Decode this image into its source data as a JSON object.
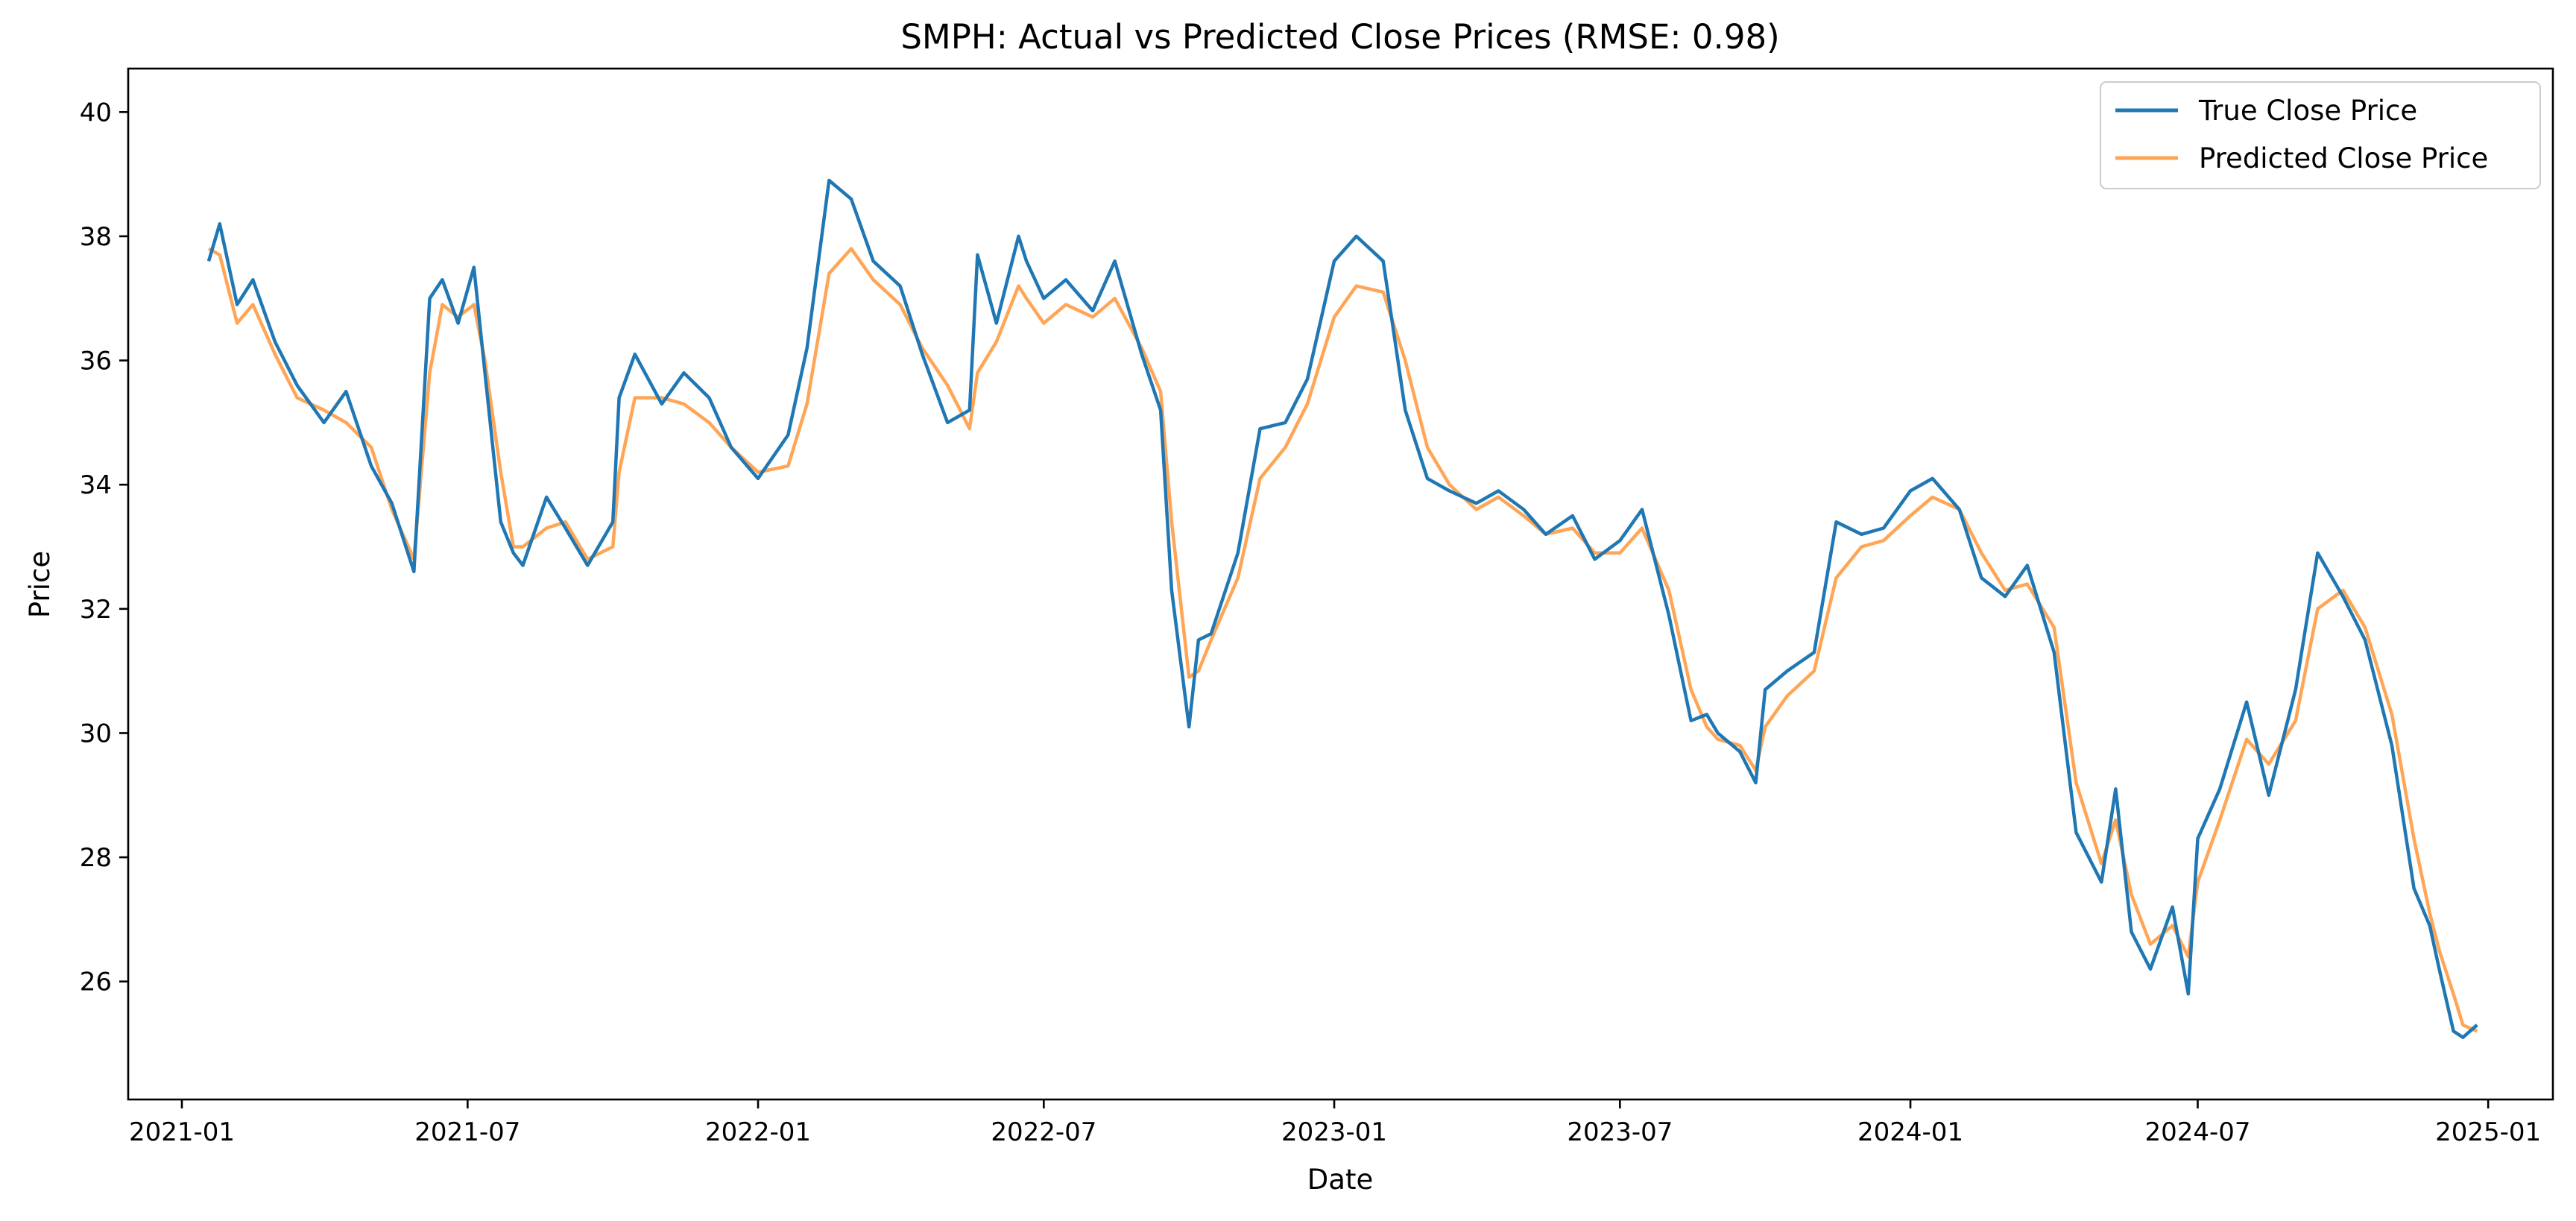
{
  "chart_data": {
    "type": "line",
    "title": "SMPH: Actual vs Predicted Close Prices (RMSE: 0.98)",
    "xlabel": "Date",
    "ylabel": "Price",
    "xlim": [
      "2020-11-28",
      "2025-02-11"
    ],
    "ylim": [
      24.1,
      40.7
    ],
    "x_ticks": [
      "2021-01",
      "2021-07",
      "2022-01",
      "2022-07",
      "2023-01",
      "2023-07",
      "2024-01",
      "2024-07",
      "2025-01"
    ],
    "y_ticks": [
      26,
      28,
      30,
      32,
      34,
      36,
      38,
      40
    ],
    "grid": false,
    "legend_position": "top-right",
    "colors": {
      "true": "#1f77b4",
      "predicted": "#ff7f0e"
    },
    "series": [
      {
        "name": "True Close Price",
        "key": "true",
        "x": [
          "2021-01-18",
          "2021-01-25",
          "2021-02-05",
          "2021-02-15",
          "2021-03-01",
          "2021-03-15",
          "2021-04-01",
          "2021-04-15",
          "2021-05-01",
          "2021-05-14",
          "2021-05-28",
          "2021-06-07",
          "2021-06-15",
          "2021-06-25",
          "2021-07-05",
          "2021-07-12",
          "2021-07-22",
          "2021-07-30",
          "2021-08-05",
          "2021-08-20",
          "2021-09-01",
          "2021-09-15",
          "2021-10-01",
          "2021-10-05",
          "2021-10-15",
          "2021-11-01",
          "2021-11-15",
          "2021-12-01",
          "2021-12-15",
          "2022-01-01",
          "2022-01-20",
          "2022-02-01",
          "2022-02-15",
          "2022-03-01",
          "2022-03-15",
          "2022-04-01",
          "2022-04-15",
          "2022-05-01",
          "2022-05-15",
          "2022-05-20",
          "2022-06-01",
          "2022-06-15",
          "2022-06-20",
          "2022-07-01",
          "2022-07-15",
          "2022-08-01",
          "2022-08-15",
          "2022-09-01",
          "2022-09-13",
          "2022-09-20",
          "2022-10-01",
          "2022-10-07",
          "2022-10-15",
          "2022-11-01",
          "2022-11-15",
          "2022-12-01",
          "2022-12-15",
          "2023-01-01",
          "2023-01-15",
          "2023-02-01",
          "2023-02-15",
          "2023-03-01",
          "2023-03-15",
          "2023-04-01",
          "2023-04-15",
          "2023-05-01",
          "2023-05-15",
          "2023-06-01",
          "2023-06-15",
          "2023-07-01",
          "2023-07-15",
          "2023-08-01",
          "2023-08-15",
          "2023-08-25",
          "2023-09-01",
          "2023-09-15",
          "2023-09-25",
          "2023-10-01",
          "2023-10-15",
          "2023-11-01",
          "2023-11-15",
          "2023-12-01",
          "2023-12-15",
          "2024-01-01",
          "2024-01-15",
          "2024-02-01",
          "2024-02-15",
          "2024-03-01",
          "2024-03-15",
          "2024-04-01",
          "2024-04-15",
          "2024-05-01",
          "2024-05-10",
          "2024-05-20",
          "2024-06-01",
          "2024-06-15",
          "2024-06-25",
          "2024-07-01",
          "2024-07-15",
          "2024-08-01",
          "2024-08-15",
          "2024-09-01",
          "2024-09-15",
          "2024-10-01",
          "2024-10-15",
          "2024-11-01",
          "2024-11-15",
          "2024-11-25",
          "2024-12-01",
          "2024-12-10",
          "2024-12-16",
          "2024-12-25"
        ],
        "values": [
          37.6,
          38.2,
          36.9,
          37.3,
          36.3,
          35.6,
          35.0,
          35.5,
          34.3,
          33.7,
          32.6,
          37.0,
          37.3,
          36.6,
          37.5,
          35.8,
          33.4,
          32.9,
          32.7,
          33.8,
          33.3,
          32.7,
          33.4,
          35.4,
          36.1,
          35.3,
          35.8,
          35.4,
          34.6,
          34.1,
          34.8,
          36.2,
          38.9,
          38.6,
          37.6,
          37.2,
          36.1,
          35.0,
          35.2,
          37.7,
          36.6,
          38.0,
          37.6,
          37.0,
          37.3,
          36.8,
          37.6,
          36.1,
          35.2,
          32.3,
          30.1,
          31.5,
          31.6,
          32.9,
          34.9,
          35.0,
          35.7,
          37.6,
          38.0,
          37.6,
          35.2,
          34.1,
          33.9,
          33.7,
          33.9,
          33.6,
          33.2,
          33.5,
          32.8,
          33.1,
          33.6,
          31.9,
          30.2,
          30.3,
          30.0,
          29.7,
          29.2,
          30.7,
          31.0,
          31.3,
          33.4,
          33.2,
          33.3,
          33.9,
          34.1,
          33.6,
          32.5,
          32.2,
          32.7,
          31.3,
          28.4,
          27.6,
          29.1,
          26.8,
          26.2,
          27.2,
          25.8,
          28.3,
          29.1,
          30.5,
          29.0,
          30.7,
          32.9,
          32.2,
          31.5,
          29.8,
          27.5,
          26.9,
          26.2,
          25.2,
          25.1,
          25.3
        ]
      },
      {
        "name": "Predicted Close Price",
        "key": "predicted",
        "x": [
          "2021-01-18",
          "2021-01-25",
          "2021-02-05",
          "2021-02-15",
          "2021-03-01",
          "2021-03-15",
          "2021-04-01",
          "2021-04-15",
          "2021-05-01",
          "2021-05-14",
          "2021-05-28",
          "2021-06-07",
          "2021-06-15",
          "2021-06-25",
          "2021-07-05",
          "2021-07-12",
          "2021-07-22",
          "2021-07-30",
          "2021-08-05",
          "2021-08-20",
          "2021-09-01",
          "2021-09-15",
          "2021-10-01",
          "2021-10-05",
          "2021-10-15",
          "2021-11-01",
          "2021-11-15",
          "2021-12-01",
          "2021-12-15",
          "2022-01-01",
          "2022-01-20",
          "2022-02-01",
          "2022-02-15",
          "2022-03-01",
          "2022-03-15",
          "2022-04-01",
          "2022-04-15",
          "2022-05-01",
          "2022-05-15",
          "2022-05-20",
          "2022-06-01",
          "2022-06-15",
          "2022-06-20",
          "2022-07-01",
          "2022-07-15",
          "2022-08-01",
          "2022-08-15",
          "2022-09-01",
          "2022-09-13",
          "2022-09-20",
          "2022-10-01",
          "2022-10-07",
          "2022-10-15",
          "2022-11-01",
          "2022-11-15",
          "2022-12-01",
          "2022-12-15",
          "2023-01-01",
          "2023-01-15",
          "2023-02-01",
          "2023-02-15",
          "2023-03-01",
          "2023-03-15",
          "2023-04-01",
          "2023-04-15",
          "2023-05-01",
          "2023-05-15",
          "2023-06-01",
          "2023-06-15",
          "2023-07-01",
          "2023-07-15",
          "2023-08-01",
          "2023-08-15",
          "2023-08-25",
          "2023-09-01",
          "2023-09-15",
          "2023-09-25",
          "2023-10-01",
          "2023-10-15",
          "2023-11-01",
          "2023-11-15",
          "2023-12-01",
          "2023-12-15",
          "2024-01-01",
          "2024-01-15",
          "2024-02-01",
          "2024-02-15",
          "2024-03-01",
          "2024-03-15",
          "2024-04-01",
          "2024-04-15",
          "2024-05-01",
          "2024-05-10",
          "2024-05-20",
          "2024-06-01",
          "2024-06-15",
          "2024-06-25",
          "2024-07-01",
          "2024-07-15",
          "2024-08-01",
          "2024-08-15",
          "2024-09-01",
          "2024-09-15",
          "2024-10-01",
          "2024-10-15",
          "2024-11-01",
          "2024-11-15",
          "2024-11-25",
          "2024-12-01",
          "2024-12-10",
          "2024-12-16",
          "2024-12-25"
        ],
        "values": [
          37.8,
          37.7,
          36.6,
          36.9,
          36.1,
          35.4,
          35.2,
          35.0,
          34.6,
          33.6,
          32.8,
          35.8,
          36.9,
          36.7,
          36.9,
          36.0,
          34.2,
          33.0,
          33.0,
          33.3,
          33.4,
          32.8,
          33.0,
          34.2,
          35.4,
          35.4,
          35.3,
          35.0,
          34.6,
          34.2,
          34.3,
          35.3,
          37.4,
          37.8,
          37.3,
          36.9,
          36.2,
          35.6,
          34.9,
          35.8,
          36.3,
          37.2,
          37.0,
          36.6,
          36.9,
          36.7,
          37.0,
          36.2,
          35.5,
          33.4,
          30.9,
          31.0,
          31.5,
          32.5,
          34.1,
          34.6,
          35.3,
          36.7,
          37.2,
          37.1,
          36.0,
          34.6,
          34.0,
          33.6,
          33.8,
          33.5,
          33.2,
          33.3,
          32.9,
          32.9,
          33.3,
          32.3,
          30.7,
          30.1,
          29.9,
          29.8,
          29.4,
          30.1,
          30.6,
          31.0,
          32.5,
          33.0,
          33.1,
          33.5,
          33.8,
          33.6,
          32.9,
          32.3,
          32.4,
          31.7,
          29.2,
          27.9,
          28.6,
          27.4,
          26.6,
          26.9,
          26.4,
          27.6,
          28.6,
          29.9,
          29.5,
          30.2,
          32.0,
          32.3,
          31.7,
          30.3,
          28.3,
          27.1,
          26.5,
          25.8,
          25.3,
          25.2
        ]
      }
    ]
  }
}
